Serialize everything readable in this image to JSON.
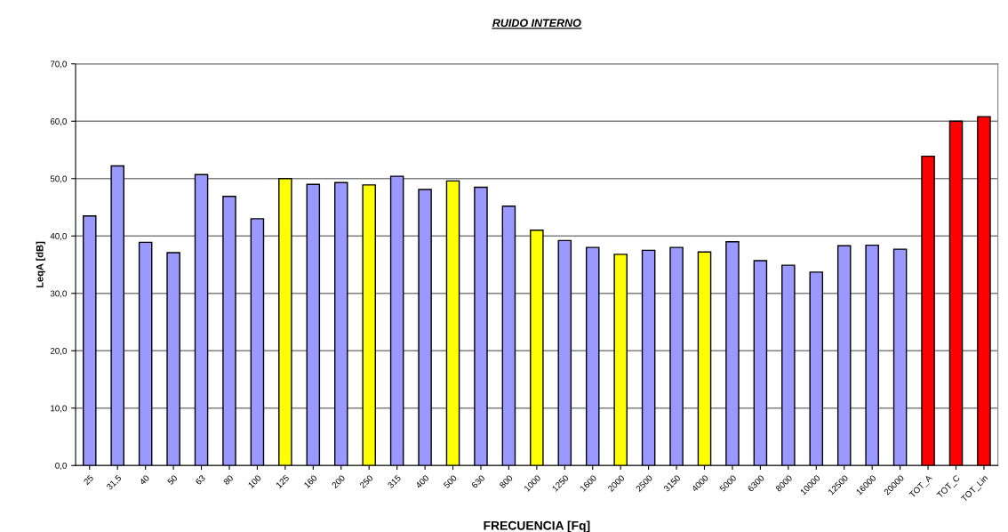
{
  "chart_data": {
    "type": "bar",
    "title": "RUIDO INTERNO",
    "xlabel": "FRECUENCIA [Fq]",
    "ylabel": "LeqA [dB]",
    "categories": [
      "25",
      "31,5",
      "40",
      "50",
      "63",
      "80",
      "100",
      "125",
      "160",
      "200",
      "250",
      "315",
      "400",
      "500",
      "630",
      "800",
      "1000",
      "1250",
      "1600",
      "2000",
      "2500",
      "3150",
      "4000",
      "5000",
      "6300",
      "8000",
      "10000",
      "12500",
      "16000",
      "20000",
      "TOT_A",
      "TOT_C",
      "TOT_Lin"
    ],
    "values": [
      43.5,
      52.2,
      38.9,
      37.1,
      50.7,
      46.9,
      43.0,
      50.0,
      49.0,
      49.3,
      48.9,
      50.4,
      48.1,
      49.6,
      48.5,
      45.2,
      41.0,
      39.2,
      38.0,
      36.8,
      37.5,
      38.0,
      37.2,
      39.0,
      35.7,
      34.9,
      33.7,
      38.3,
      38.4,
      37.7,
      53.9,
      60.0,
      60.8
    ],
    "colors": [
      "#9999ff",
      "#9999ff",
      "#9999ff",
      "#9999ff",
      "#9999ff",
      "#9999ff",
      "#9999ff",
      "#ffff00",
      "#9999ff",
      "#9999ff",
      "#ffff00",
      "#9999ff",
      "#9999ff",
      "#ffff00",
      "#9999ff",
      "#9999ff",
      "#ffff00",
      "#9999ff",
      "#9999ff",
      "#ffff00",
      "#9999ff",
      "#9999ff",
      "#ffff00",
      "#9999ff",
      "#9999ff",
      "#9999ff",
      "#9999ff",
      "#9999ff",
      "#9999ff",
      "#9999ff",
      "#ff0000",
      "#ff0000",
      "#ff0000"
    ],
    "ylim": [
      0,
      70
    ],
    "yticks": [
      {
        "value": 0,
        "label": "0,0"
      },
      {
        "value": 10,
        "label": "10,0"
      },
      {
        "value": 20,
        "label": "20,0"
      },
      {
        "value": 30,
        "label": "30,0"
      },
      {
        "value": 40,
        "label": "40,0"
      },
      {
        "value": 50,
        "label": "50,0"
      },
      {
        "value": 60,
        "label": "60,0"
      },
      {
        "value": 70,
        "label": "70,0"
      }
    ],
    "grid": "y",
    "legend": false
  }
}
